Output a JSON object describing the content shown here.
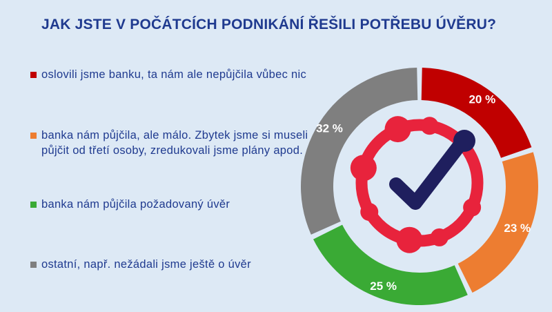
{
  "chart_data": {
    "type": "pie",
    "title": "JAK JSTE V POČÁTCÍCH PODNIKÁNÍ ŘEŠILI POTŘEBU ÚVĚRU?",
    "categories": [
      "oslovili jsme banku, ta nám ale nepůjčila vůbec nic",
      "banka nám půjčila, ale málo. Zbytek jsme si museli půjčit od třetí osoby, zredukovali jsme plány apod.",
      "banka nám půjčila požadovaný úvěr",
      "ostatní, např. nežádali jsme ještě o úvěr"
    ],
    "values": [
      20,
      23,
      25,
      32
    ],
    "value_labels": [
      "20 %",
      "23 %",
      "25 %",
      "32 %"
    ],
    "colors": [
      "#c00000",
      "#ed7d31",
      "#3aaa35",
      "#7f7f7f"
    ],
    "legend_position": "left",
    "donut": true
  },
  "center_icon": "checkmark-in-ring-icon",
  "icon_colors": {
    "ring": "#e8233c",
    "check": "#1f1f5e"
  }
}
